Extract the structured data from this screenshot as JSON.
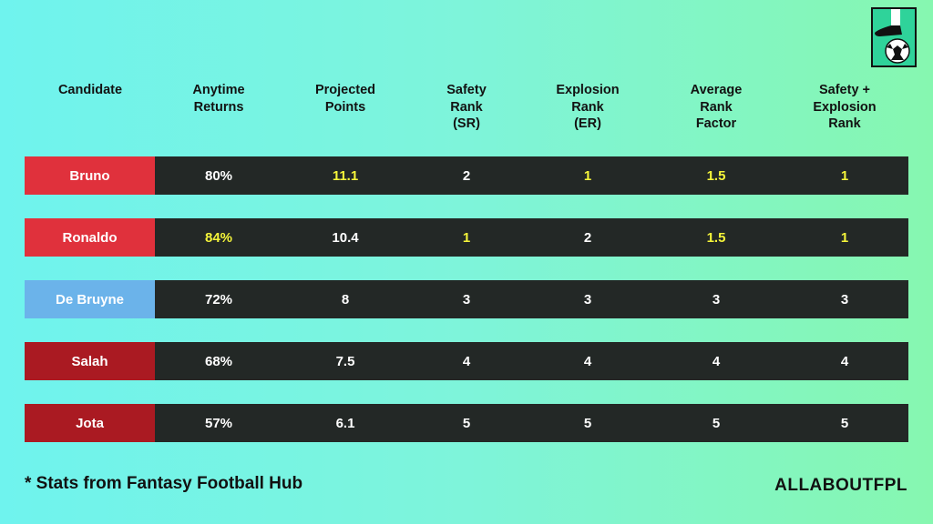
{
  "chart_data": {
    "type": "table",
    "columns": [
      "Candidate",
      "Anytime Returns",
      "Projected Points",
      "Safety Rank (SR)",
      "Explosion Rank (ER)",
      "Average Rank Factor",
      "Safety + Explosion Rank"
    ],
    "header_lines": [
      [
        "Candidate"
      ],
      [
        "Anytime",
        "Returns"
      ],
      [
        "Projected",
        "Points"
      ],
      [
        "Safety",
        "Rank",
        "(SR)"
      ],
      [
        "Explosion",
        "Rank",
        "(ER)"
      ],
      [
        "Average",
        "Rank",
        "Factor"
      ],
      [
        "Safety +",
        "Explosion",
        "Rank"
      ]
    ],
    "rows": [
      {
        "name": "Bruno",
        "color": "#e0313c",
        "values": [
          "80%",
          "11.1",
          "2",
          "1",
          "1.5",
          "1"
        ],
        "highlight": [
          false,
          true,
          false,
          true,
          true,
          true
        ]
      },
      {
        "name": "Ronaldo",
        "color": "#e0313c",
        "values": [
          "84%",
          "10.4",
          "1",
          "2",
          "1.5",
          "1"
        ],
        "highlight": [
          true,
          false,
          true,
          false,
          true,
          true
        ]
      },
      {
        "name": "De Bruyne",
        "color": "#6bb3ea",
        "values": [
          "72%",
          "8",
          "3",
          "3",
          "3",
          "3"
        ],
        "highlight": [
          false,
          false,
          false,
          false,
          false,
          false
        ]
      },
      {
        "name": "Salah",
        "color": "#aa1a22",
        "values": [
          "68%",
          "7.5",
          "4",
          "4",
          "4",
          "4"
        ],
        "highlight": [
          false,
          false,
          false,
          false,
          false,
          false
        ]
      },
      {
        "name": "Jota",
        "color": "#aa1a22",
        "values": [
          "57%",
          "6.1",
          "5",
          "5",
          "5",
          "5"
        ],
        "highlight": [
          false,
          false,
          false,
          false,
          false,
          false
        ]
      }
    ],
    "colors": {
      "band": "#232826",
      "highlight_text": "#f5f53a",
      "normal_text": "#ffffff"
    }
  },
  "footnote": "*  Stats from Fantasy Football Hub",
  "brand": "ALLABOUTFPL",
  "logo_icon": "boot-and-football-icon"
}
